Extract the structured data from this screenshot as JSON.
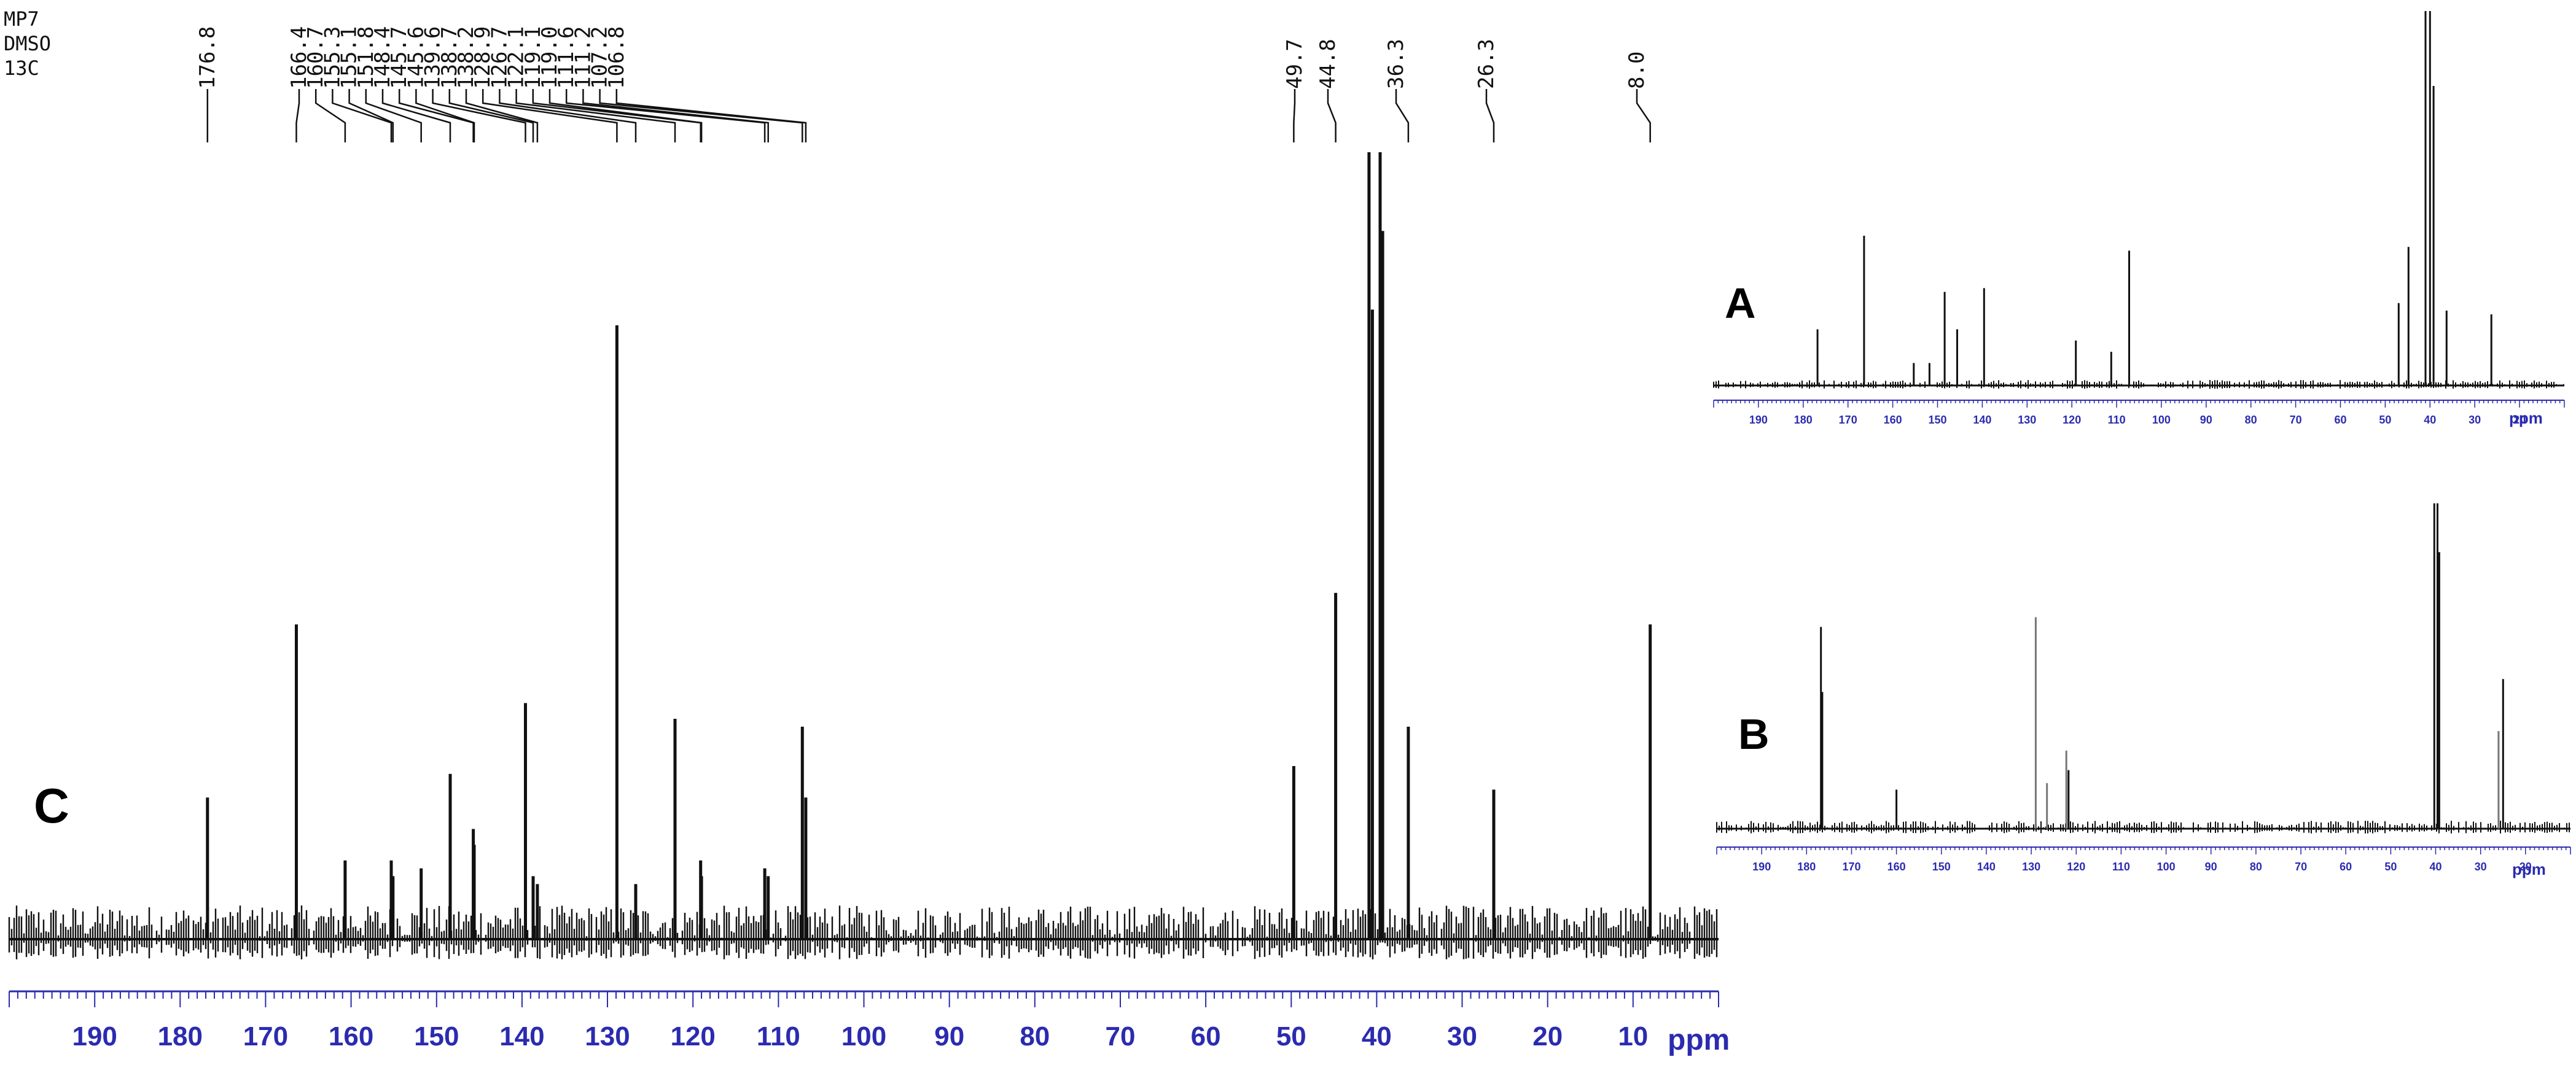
{
  "header": {
    "lines": [
      "MP7",
      "DMSO",
      "13C"
    ]
  },
  "colors": {
    "axis": "#2b2bb0",
    "spectrum": "#111111",
    "lightPeak": "#777777"
  },
  "chart_data": [
    {
      "type": "line",
      "panel_label": "C",
      "xlabel": "ppm",
      "xlim": [
        200,
        0
      ],
      "x_reversed": true,
      "x_ticks": [
        190,
        180,
        170,
        160,
        150,
        140,
        130,
        120,
        110,
        100,
        90,
        80,
        70,
        60,
        50,
        40,
        30,
        20,
        10
      ],
      "peak_labels": [
        "176.8",
        "166.4",
        "160.7",
        "155.3",
        "155.1",
        "151.8",
        "148.4",
        "145.7",
        "145.6",
        "139.6",
        "138.7",
        "138.2",
        "128.9",
        "126.7",
        "122.1",
        "119.1",
        "119.0",
        "111.6",
        "111.2",
        "107.2",
        "106.8",
        "49.7",
        "44.8",
        "36.3",
        "26.3",
        "8.0"
      ],
      "peaks": [
        {
          "ppm": 176.8,
          "intensity": 0.18
        },
        {
          "ppm": 166.4,
          "intensity": 0.4
        },
        {
          "ppm": 160.7,
          "intensity": 0.1
        },
        {
          "ppm": 155.3,
          "intensity": 0.1
        },
        {
          "ppm": 155.1,
          "intensity": 0.08
        },
        {
          "ppm": 151.8,
          "intensity": 0.09
        },
        {
          "ppm": 148.4,
          "intensity": 0.21
        },
        {
          "ppm": 145.7,
          "intensity": 0.14
        },
        {
          "ppm": 145.6,
          "intensity": 0.12
        },
        {
          "ppm": 139.6,
          "intensity": 0.3
        },
        {
          "ppm": 138.7,
          "intensity": 0.08
        },
        {
          "ppm": 138.2,
          "intensity": 0.07
        },
        {
          "ppm": 128.9,
          "intensity": 0.78
        },
        {
          "ppm": 126.7,
          "intensity": 0.07
        },
        {
          "ppm": 122.1,
          "intensity": 0.28
        },
        {
          "ppm": 119.1,
          "intensity": 0.1
        },
        {
          "ppm": 119.0,
          "intensity": 0.08
        },
        {
          "ppm": 111.6,
          "intensity": 0.09
        },
        {
          "ppm": 111.2,
          "intensity": 0.08
        },
        {
          "ppm": 107.2,
          "intensity": 0.27
        },
        {
          "ppm": 106.8,
          "intensity": 0.18
        },
        {
          "ppm": 49.7,
          "intensity": 0.22
        },
        {
          "ppm": 44.8,
          "intensity": 0.44
        },
        {
          "ppm": 40.9,
          "intensity": 1.0
        },
        {
          "ppm": 40.5,
          "intensity": 0.8
        },
        {
          "ppm": 39.6,
          "intensity": 1.0
        },
        {
          "ppm": 39.3,
          "intensity": 0.9
        },
        {
          "ppm": 36.3,
          "intensity": 0.27
        },
        {
          "ppm": 26.3,
          "intensity": 0.19
        },
        {
          "ppm": 8.0,
          "intensity": 0.4
        }
      ]
    },
    {
      "type": "line",
      "panel_label": "A",
      "xlabel": "ppm",
      "xlim": [
        200,
        10
      ],
      "x_reversed": true,
      "x_ticks": [
        190,
        180,
        170,
        160,
        150,
        140,
        130,
        120,
        110,
        100,
        90,
        80,
        70,
        60,
        50,
        40,
        30,
        20
      ],
      "peaks": [
        {
          "ppm": 176.8,
          "intensity": 0.15
        },
        {
          "ppm": 166.4,
          "intensity": 0.4
        },
        {
          "ppm": 155.3,
          "intensity": 0.06
        },
        {
          "ppm": 151.8,
          "intensity": 0.06
        },
        {
          "ppm": 148.4,
          "intensity": 0.25
        },
        {
          "ppm": 145.6,
          "intensity": 0.15
        },
        {
          "ppm": 139.6,
          "intensity": 0.26
        },
        {
          "ppm": 119.1,
          "intensity": 0.12
        },
        {
          "ppm": 111.2,
          "intensity": 0.09
        },
        {
          "ppm": 107.2,
          "intensity": 0.36
        },
        {
          "ppm": 47.0,
          "intensity": 0.22
        },
        {
          "ppm": 44.8,
          "intensity": 0.37
        },
        {
          "ppm": 41.0,
          "intensity": 1.0
        },
        {
          "ppm": 40.0,
          "intensity": 1.0
        },
        {
          "ppm": 39.2,
          "intensity": 0.8
        },
        {
          "ppm": 36.3,
          "intensity": 0.2
        },
        {
          "ppm": 26.3,
          "intensity": 0.19
        }
      ]
    },
    {
      "type": "line",
      "panel_label": "B",
      "xlabel": "ppm",
      "xlim": [
        200,
        10
      ],
      "x_reversed": true,
      "x_ticks": [
        190,
        180,
        170,
        160,
        150,
        140,
        130,
        120,
        110,
        100,
        90,
        80,
        70,
        60,
        50,
        40,
        30,
        20
      ],
      "peaks": [
        {
          "ppm": 176.8,
          "intensity": 0.62
        },
        {
          "ppm": 176.5,
          "intensity": 0.42
        },
        {
          "ppm": 160.0,
          "intensity": 0.12
        },
        {
          "ppm": 129.0,
          "intensity": 0.65
        },
        {
          "ppm": 126.5,
          "intensity": 0.14
        },
        {
          "ppm": 122.2,
          "intensity": 0.24
        },
        {
          "ppm": 121.7,
          "intensity": 0.18
        },
        {
          "ppm": 40.3,
          "intensity": 1.0
        },
        {
          "ppm": 39.6,
          "intensity": 1.0
        },
        {
          "ppm": 39.2,
          "intensity": 0.85
        },
        {
          "ppm": 26.0,
          "intensity": 0.3
        },
        {
          "ppm": 25.0,
          "intensity": 0.46
        }
      ]
    }
  ]
}
